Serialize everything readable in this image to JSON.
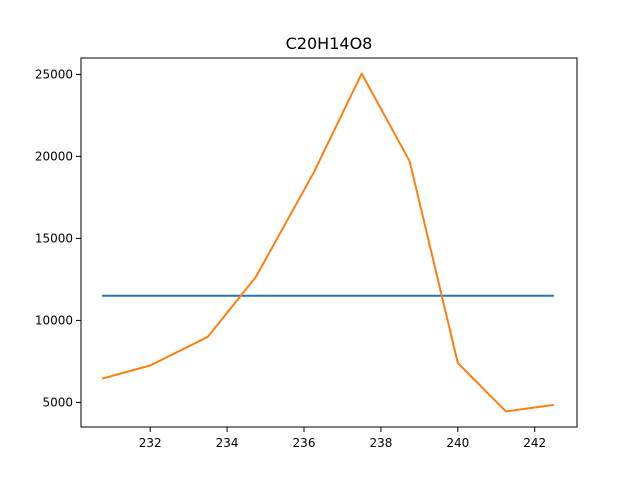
{
  "chart_data": {
    "type": "line",
    "title": "C20H14O8",
    "xlabel": "",
    "ylabel": "",
    "xlim": [
      230.2,
      243.1
    ],
    "ylim": [
      3500,
      26000
    ],
    "xticks": [
      232,
      234,
      236,
      238,
      240,
      242
    ],
    "yticks": [
      5000,
      10000,
      15000,
      20000,
      25000
    ],
    "grid": false,
    "series": [
      {
        "color": "#1f77b4",
        "x": [
          230.75,
          242.5
        ],
        "y": [
          11500,
          11500
        ]
      },
      {
        "color": "#ff7f0e",
        "x": [
          230.75,
          232.0,
          233.5,
          234.75,
          236.25,
          237.5,
          238.75,
          240.0,
          241.25,
          242.5
        ],
        "y": [
          6450,
          7250,
          9000,
          12650,
          19000,
          25050,
          19700,
          7400,
          4450,
          4850
        ]
      }
    ]
  }
}
